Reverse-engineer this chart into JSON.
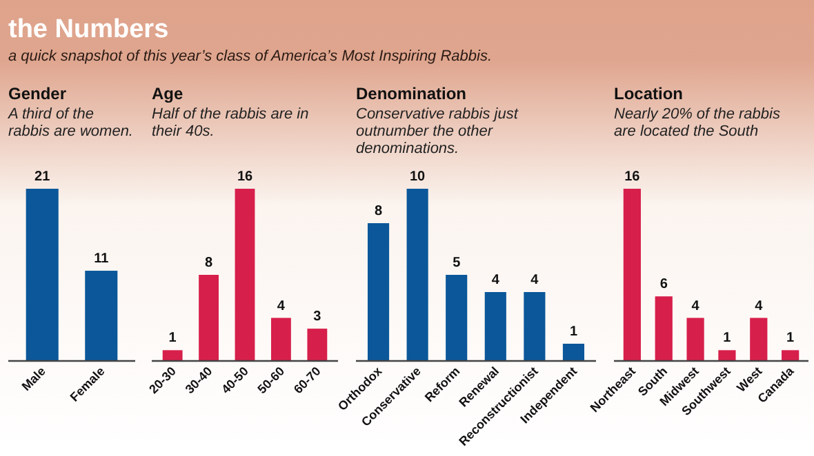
{
  "chart_data": [
    {
      "type": "other",
      "title": "the Numbers",
      "subtitle": "a quick snapshot of this year’s class of America’s Most Inspiring Rabbis."
    },
    {
      "type": "bar",
      "title": "Gender",
      "subtitle": "A third of the rabbis are women.",
      "categories": [
        "Male",
        "Female"
      ],
      "values": [
        21,
        11
      ],
      "color": "#0b5799",
      "data_labels": true
    },
    {
      "type": "bar",
      "title": "Age",
      "subtitle": "Half of the rabbis are in their 40s.",
      "categories": [
        "20-30",
        "30-40",
        "40-50",
        "50-60",
        "60-70"
      ],
      "values": [
        1,
        8,
        16,
        4,
        3
      ],
      "color": "#d71f4b",
      "data_labels": true
    },
    {
      "type": "bar",
      "title": "Denomination",
      "subtitle": "Conservative rabbis just outnumber the other denominations.",
      "categories": [
        "Orthodox",
        "Conservative",
        "Reform",
        "Renewal",
        "Reconstructionist",
        "Independent"
      ],
      "values": [
        8,
        10,
        5,
        4,
        4,
        1
      ],
      "color": "#0b5799",
      "data_labels": true
    },
    {
      "type": "bar",
      "title": "Location",
      "subtitle": "Nearly 20% of the rabbis are located the South",
      "categories": [
        "Northeast",
        "South",
        "Midwest",
        "Southwest",
        "West",
        "Canada"
      ],
      "values": [
        16,
        6,
        4,
        1,
        4,
        1
      ],
      "color": "#d71f4b",
      "data_labels": true
    }
  ]
}
